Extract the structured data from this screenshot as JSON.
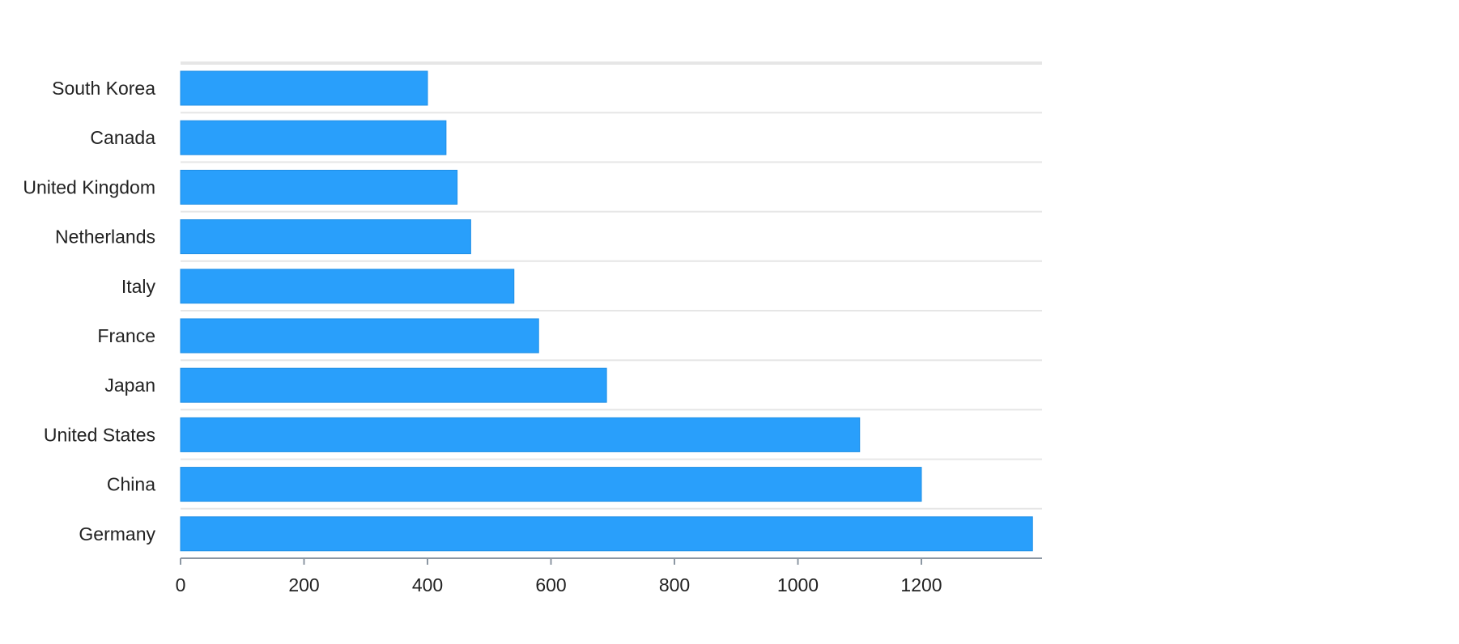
{
  "chart_data": {
    "type": "bar",
    "orientation": "horizontal",
    "title": "",
    "xlabel": "",
    "ylabel": "",
    "categories": [
      "South Korea",
      "Canada",
      "United Kingdom",
      "Netherlands",
      "Italy",
      "France",
      "Japan",
      "United States",
      "China",
      "Germany"
    ],
    "values": [
      400,
      430,
      448,
      470,
      540,
      580,
      690,
      1100,
      1200,
      1380
    ],
    "xlim": [
      0,
      1400
    ],
    "xticks": [
      0,
      200,
      400,
      600,
      800,
      1000,
      1200
    ],
    "xtick_labels": [
      "0",
      "200",
      "400",
      "600",
      "800",
      "1000",
      "1200"
    ],
    "grid": "horizontal separators between rows",
    "legend": "none",
    "colors": {
      "bar": "#299ffb",
      "bar_edge": "#1f8fe6",
      "grid": "#e6e6e6",
      "axis": "#8c97a3",
      "text": "#222222"
    }
  }
}
